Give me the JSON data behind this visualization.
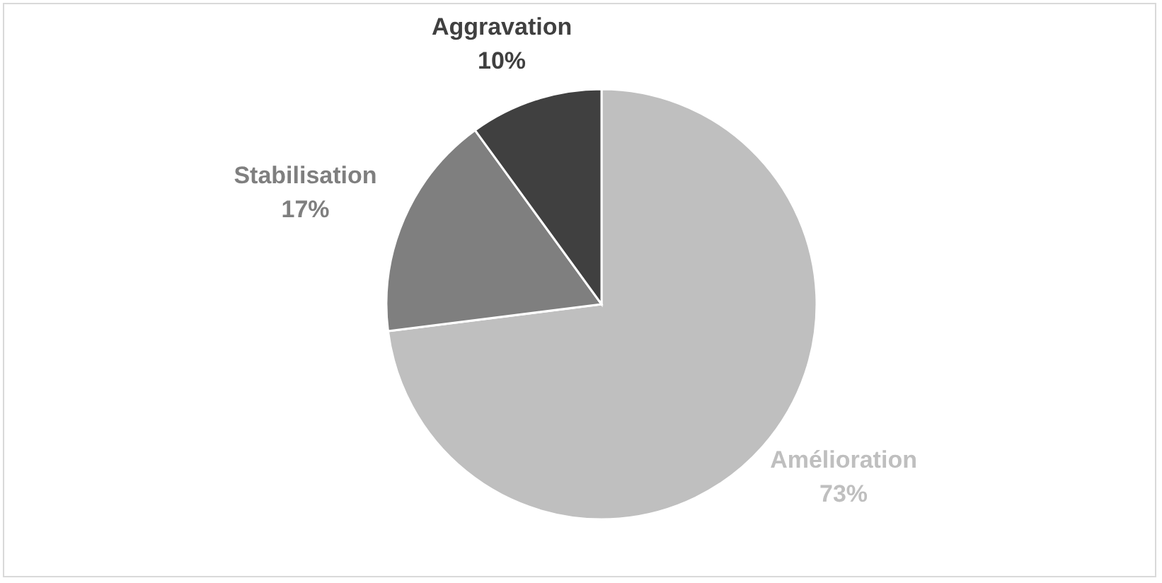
{
  "chart_data": {
    "type": "pie",
    "categories": [
      "Amélioration",
      "Stabilisation",
      "Aggravation"
    ],
    "values": [
      73,
      17,
      10
    ],
    "colors": [
      "#bfbfbf",
      "#7f7f7f",
      "#404040"
    ],
    "value_labels": [
      "73%",
      "17%",
      "10%"
    ]
  }
}
